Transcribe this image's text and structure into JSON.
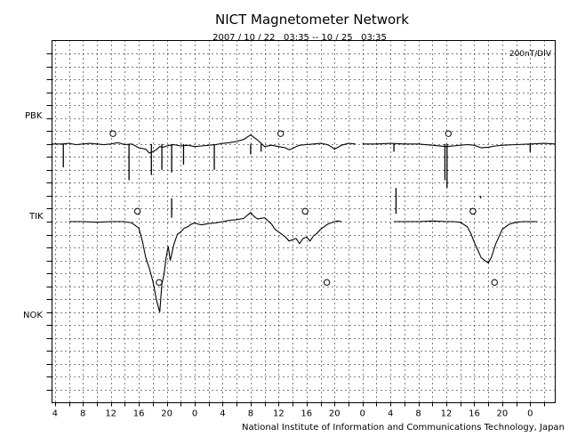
{
  "chart_data": {
    "type": "line",
    "title": "NICT Magnetometer Network",
    "subtitle": "2007 / 10 / 22   03:35 -- 10 / 25   03:35",
    "scale_label": "200nT/DIV",
    "credit": "National Institute of Information and Communications Technology, Japan",
    "x_unit": "hours UT",
    "xlim": [
      3.58,
      75.58
    ],
    "x_tick_labels": [
      "4",
      "8",
      "12",
      "16",
      "20",
      "0",
      "4",
      "8",
      "12",
      "16",
      "20",
      "0",
      "4",
      "8",
      "12",
      "16",
      "20",
      "0"
    ],
    "x_tick_values": [
      4,
      8,
      12,
      16,
      20,
      24,
      28,
      32,
      36,
      40,
      44,
      48,
      52,
      56,
      60,
      64,
      68,
      72
    ],
    "y_unit": "nT (offset per station)",
    "ylim": [
      -2000,
      800
    ],
    "grid": true,
    "station_labels": [
      "PBK",
      "TIK",
      "NOK"
    ],
    "station_baselines": [
      0,
      -600,
      -1150
    ],
    "local_midnight_markers": [
      {
        "station": "PBK",
        "x": [
          12.3,
          36.3,
          60.3
        ]
      },
      {
        "station": "TIK",
        "x": [
          15.8,
          39.8,
          63.8
        ]
      },
      {
        "station": "NOK",
        "x": [
          18.9,
          42.9,
          66.9
        ]
      }
    ],
    "series": [
      {
        "name": "PBK",
        "segments": [
          {
            "x": [
              3.6,
              5,
              6,
              7,
              8,
              9,
              10,
              11,
              12,
              13,
              14,
              15,
              16,
              17,
              17.5,
              18,
              18.5,
              19,
              19.5,
              20,
              20.5,
              21,
              22,
              23,
              24,
              25,
              26,
              27,
              28,
              29,
              30,
              31,
              32,
              33,
              34,
              35,
              36,
              37,
              37.5,
              38,
              38.5,
              39,
              40,
              41,
              42,
              43,
              43.5,
              44,
              44.5,
              45,
              46,
              47
            ],
            "y": [
              0,
              0,
              5,
              -5,
              0,
              5,
              0,
              -5,
              0,
              10,
              -5,
              0,
              -30,
              -40,
              -70,
              -60,
              -45,
              -20,
              -25,
              -15,
              -10,
              -5,
              -15,
              -10,
              -20,
              -15,
              -10,
              -5,
              5,
              10,
              20,
              35,
              70,
              30,
              -20,
              -10,
              -20,
              -30,
              -45,
              -35,
              -20,
              -10,
              -5,
              0,
              5,
              -5,
              -20,
              -40,
              -25,
              -10,
              5,
              0
            ]
          },
          {
            "x": [
              48,
              50,
              52,
              54,
              56,
              58,
              60,
              61,
              62,
              63,
              64,
              65,
              66,
              67,
              68,
              70,
              72,
              74,
              75.6
            ],
            "y": [
              0,
              0,
              5,
              0,
              0,
              -10,
              -20,
              -15,
              -10,
              -5,
              -10,
              -30,
              -25,
              -15,
              -10,
              -5,
              0,
              5,
              0
            ]
          }
        ],
        "spikes": [
          {
            "x": 5.2,
            "y": -180
          },
          {
            "x": 14.6,
            "y": -280
          },
          {
            "x": 17.8,
            "y": -240
          },
          {
            "x": 19.3,
            "y": -200
          },
          {
            "x": 20.7,
            "y": -220
          },
          {
            "x": 22.4,
            "y": -160
          },
          {
            "x": 26.8,
            "y": -200
          },
          {
            "x": 32.0,
            "y": -80
          },
          {
            "x": 33.5,
            "y": -60
          },
          {
            "x": 52.5,
            "y": -60
          },
          {
            "x": 59.8,
            "y": -280
          },
          {
            "x": 60.1,
            "y": -340
          },
          {
            "x": 72.0,
            "y": -60
          }
        ],
        "dropouts": [
          {
            "x": 20.7,
            "y": [
              -420,
              -570
            ]
          },
          {
            "x": 52.8,
            "y": [
              -340,
              -540
            ]
          },
          {
            "x": 64.9,
            "y": [
              -400,
              -420
            ]
          }
        ]
      },
      {
        "name": "TIK",
        "segments": [
          {
            "x": [
              6,
              8,
              10,
              12,
              14,
              15,
              16,
              16.5,
              17,
              17.5,
              18,
              18.5,
              19,
              19.3,
              19.6,
              19.9,
              20.2,
              20.5,
              21,
              21.5,
              22,
              22.5,
              23,
              23.5,
              24,
              24.5,
              25,
              26,
              27,
              28,
              29,
              30,
              31,
              32,
              32.5,
              33,
              34,
              35,
              35.5,
              36,
              37,
              37.5,
              38,
              38.5,
              39,
              39.5,
              40,
              40.5,
              41,
              41.5,
              42,
              42.5,
              43,
              43.5,
              44,
              44.5,
              45
            ],
            "y": [
              0,
              0,
              -5,
              0,
              0,
              -10,
              -50,
              -150,
              -280,
              -360,
              -460,
              -600,
              -700,
              -480,
              -410,
              -280,
              -190,
              -300,
              -180,
              -100,
              -80,
              -50,
              -40,
              -20,
              -10,
              -20,
              -25,
              -15,
              -10,
              0,
              10,
              15,
              25,
              70,
              40,
              20,
              30,
              -20,
              -60,
              -80,
              -120,
              -150,
              -140,
              -130,
              -170,
              -130,
              -120,
              -150,
              -110,
              -90,
              -60,
              -40,
              -20,
              -10,
              0,
              5,
              0
            ]
          },
          {
            "x": [
              52.5,
              54,
              56,
              58,
              60,
              61,
              62,
              63,
              63.5,
              64,
              64.5,
              65,
              65.5,
              66,
              66.5,
              67,
              68,
              69,
              70,
              71,
              72,
              73
            ],
            "y": [
              0,
              0,
              0,
              5,
              0,
              0,
              -5,
              -40,
              -90,
              -160,
              -220,
              -280,
              -300,
              -320,
              -270,
              -180,
              -60,
              -20,
              -5,
              0,
              0,
              0
            ]
          }
        ]
      },
      {
        "name": "NOK",
        "segments": []
      }
    ]
  }
}
